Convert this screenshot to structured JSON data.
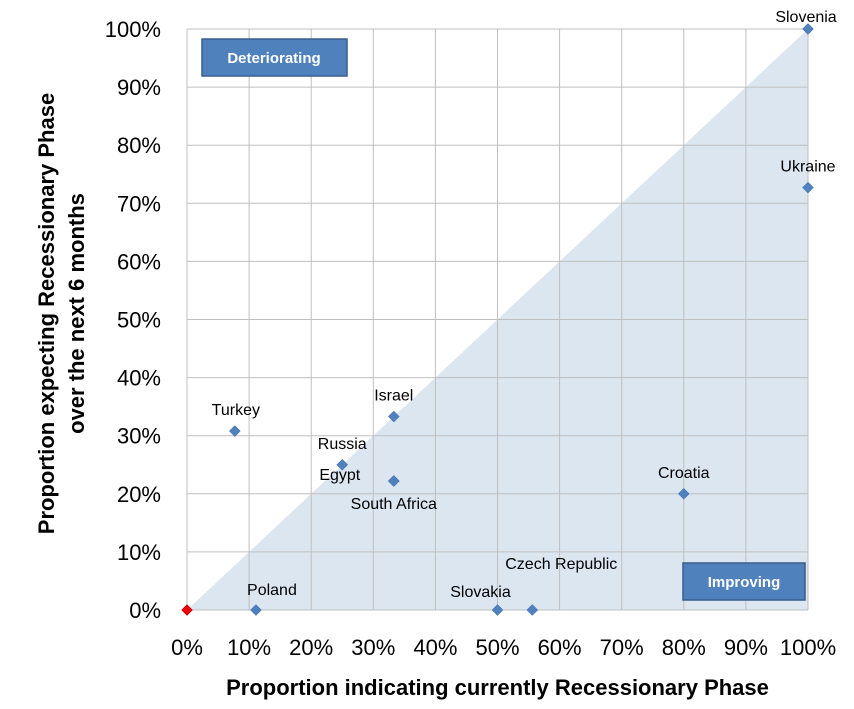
{
  "chart_data": {
    "type": "scatter",
    "xlabel": "Proportion indicating currently Recessionary Phase",
    "ylabel_line1": "Proportion expecting Recessionary Phase",
    "ylabel_line2": "over the next 6 months",
    "xlim": [
      0,
      100
    ],
    "ylim": [
      0,
      100
    ],
    "x_ticks": [
      "0%",
      "10%",
      "20%",
      "30%",
      "40%",
      "50%",
      "60%",
      "70%",
      "80%",
      "90%",
      "100%"
    ],
    "y_ticks": [
      "0%",
      "10%",
      "20%",
      "30%",
      "40%",
      "50%",
      "60%",
      "70%",
      "80%",
      "90%",
      "100%"
    ],
    "grid": true,
    "diagonal_region": "below y = x line shaded light blue",
    "annotations": [
      {
        "text": "Deteriorating",
        "position": "top-left"
      },
      {
        "text": "Improving",
        "position": "bottom-right"
      }
    ],
    "colors": {
      "marker": "#4f81bd",
      "origin_marker": "#e8000b",
      "shade": "#dce6f1",
      "box_fill": "#4f81bd",
      "box_border": "#385d8a"
    },
    "points": [
      {
        "name": "Slovenia",
        "x": 100,
        "y": 100
      },
      {
        "name": "Ukraine",
        "x": 100,
        "y": 72.7
      },
      {
        "name": "Croatia",
        "x": 80,
        "y": 20
      },
      {
        "name": "Israel",
        "x": 33.3,
        "y": 33.3
      },
      {
        "name": "Egypt",
        "x": 33.3,
        "y": 22.2
      },
      {
        "name": "South Africa",
        "x": 33.3,
        "y": 22.2
      },
      {
        "name": "Russia",
        "x": 25,
        "y": 25
      },
      {
        "name": "Turkey",
        "x": 7.7,
        "y": 30.8
      },
      {
        "name": "Poland",
        "x": 11.1,
        "y": 0
      },
      {
        "name": "Slovakia",
        "x": 50,
        "y": 0
      },
      {
        "name": "Czech Republic",
        "x": 55.6,
        "y": 0
      },
      {
        "name": "",
        "x": 0,
        "y": 0,
        "origin": true
      }
    ]
  }
}
